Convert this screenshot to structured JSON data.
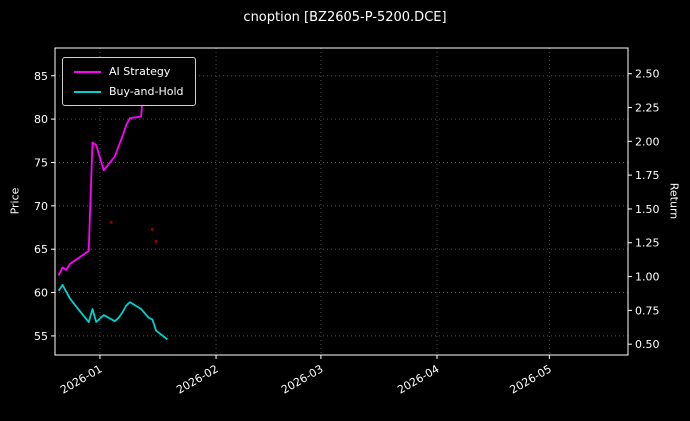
{
  "title": "cnoption [BZ2605-P-5200.DCE]",
  "axes": {
    "left_label": "Price",
    "right_label": "Return"
  },
  "legend": {
    "entries": [
      {
        "label": "AI Strategy",
        "color": "#ff00ff"
      },
      {
        "label": "Buy-and-Hold",
        "color": "#00d0d0"
      }
    ]
  },
  "colors": {
    "background": "#000000",
    "foreground": "#ffffff",
    "grid": "#4f4f4f",
    "marker": "#8b0000"
  },
  "chart_data": {
    "type": "line",
    "title": "cnoption [BZ2605-P-5200.DCE]",
    "xlabel": "",
    "ylabel_left": "Price",
    "ylabel_right": "Return",
    "grid": true,
    "legend_position": "upper left",
    "xlim": [
      "2025-12-20",
      "2026-05-22"
    ],
    "price_lim": [
      52.8,
      88.2
    ],
    "return_lim": [
      0.42,
      2.69
    ],
    "price_ticks": [
      55,
      60,
      65,
      70,
      75,
      80,
      85
    ],
    "return_ticks": [
      "0.50",
      "0.75",
      "1.00",
      "1.25",
      "1.50",
      "1.75",
      "2.00",
      "2.25",
      "2.50"
    ],
    "x_ticks": [
      {
        "date": "2026-01-01",
        "label": "2026-01"
      },
      {
        "date": "2026-02-01",
        "label": "2026-02"
      },
      {
        "date": "2026-03-01",
        "label": "2026-03"
      },
      {
        "date": "2026-04-01",
        "label": "2026-04"
      },
      {
        "date": "2026-05-01",
        "label": "2026-05"
      }
    ],
    "series": [
      {
        "name": "AI Strategy",
        "color": "#ff00ff",
        "axis": "price",
        "points": [
          [
            "2025-12-21",
            62.0
          ],
          [
            "2025-12-22",
            62.9
          ],
          [
            "2025-12-23",
            62.6
          ],
          [
            "2025-12-24",
            63.3
          ],
          [
            "2025-12-26",
            63.9
          ],
          [
            "2025-12-29",
            64.8
          ],
          [
            "2025-12-30",
            77.3
          ],
          [
            "2025-12-31",
            77.0
          ],
          [
            "2026-01-02",
            74.1
          ],
          [
            "2026-01-05",
            75.7
          ],
          [
            "2026-01-06",
            76.9
          ],
          [
            "2026-01-07",
            78.0
          ],
          [
            "2026-01-08",
            79.3
          ],
          [
            "2026-01-09",
            80.1
          ],
          [
            "2026-01-12",
            80.3
          ],
          [
            "2026-01-13",
            85.5
          ],
          [
            "2026-01-14",
            85.0
          ]
        ]
      },
      {
        "name": "Buy-and-Hold",
        "color": "#00d0d0",
        "axis": "price",
        "points": [
          [
            "2025-12-21",
            60.2
          ],
          [
            "2025-12-22",
            60.9
          ],
          [
            "2025-12-23",
            60.1
          ],
          [
            "2025-12-24",
            59.3
          ],
          [
            "2025-12-26",
            58.2
          ],
          [
            "2025-12-29",
            56.6
          ],
          [
            "2025-12-30",
            58.1
          ],
          [
            "2025-12-31",
            56.6
          ],
          [
            "2026-01-02",
            57.4
          ],
          [
            "2026-01-05",
            56.7
          ],
          [
            "2026-01-06",
            57.1
          ],
          [
            "2026-01-07",
            57.7
          ],
          [
            "2026-01-08",
            58.5
          ],
          [
            "2026-01-09",
            58.9
          ],
          [
            "2026-01-12",
            58.1
          ],
          [
            "2026-01-13",
            57.6
          ],
          [
            "2026-01-14",
            57.1
          ],
          [
            "2026-01-15",
            56.9
          ],
          [
            "2026-01-16",
            55.6
          ],
          [
            "2026-01-19",
            54.6
          ]
        ]
      }
    ],
    "markers": [
      {
        "date": "2026-01-04",
        "price": 68.1,
        "color": "#8b0000"
      },
      {
        "date": "2026-01-15",
        "price": 67.3,
        "color": "#8b0000"
      },
      {
        "date": "2026-01-16",
        "price": 65.9,
        "color": "#8b0000"
      }
    ]
  }
}
